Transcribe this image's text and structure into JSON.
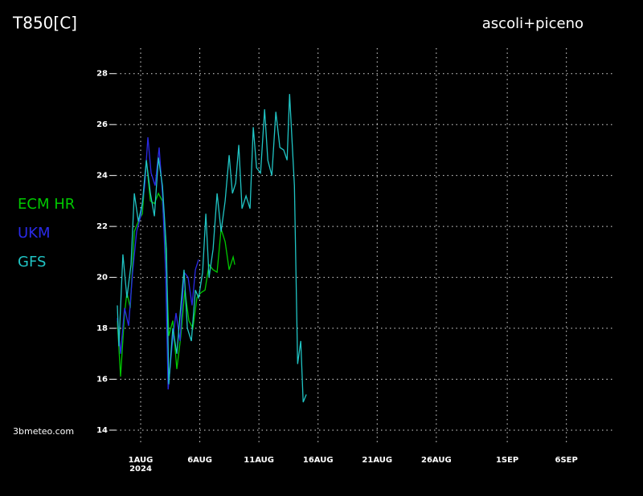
{
  "chart_data": {
    "type": "line",
    "title": "T850[C]",
    "subtitle": "ascoli+piceno",
    "credit": "3bmeteo.com",
    "year_label": "2024",
    "xlim": [
      -1.38,
      41.1
    ],
    "ylim": [
      13.4,
      29
    ],
    "xticks": [
      {
        "value": 1,
        "label": "1AUG"
      },
      {
        "value": 6,
        "label": "6AUG"
      },
      {
        "value": 11,
        "label": "11AUG"
      },
      {
        "value": 16,
        "label": "16AUG"
      },
      {
        "value": 21,
        "label": "21AUG"
      },
      {
        "value": 26,
        "label": "26AUG"
      },
      {
        "value": 32,
        "label": "1SEP"
      },
      {
        "value": 37,
        "label": "6SEP"
      }
    ],
    "yticks": [
      14,
      16,
      18,
      20,
      22,
      24,
      26,
      28
    ],
    "grid": true,
    "series": [
      {
        "name": "ECM HR",
        "color": "#00c800",
        "x": [
          -0.97,
          -0.7,
          -0.36,
          -0.16,
          0.12,
          0.46,
          0.8,
          1.14,
          1.48,
          1.82,
          2.16,
          2.5,
          2.84,
          3.18,
          3.38,
          3.72,
          4.06,
          4.4,
          4.74,
          5.08,
          5.42,
          5.76,
          6.1,
          6.44,
          6.78,
          7.12,
          7.46,
          7.8,
          8.14,
          8.48,
          8.82,
          8.96
        ],
        "values": [
          18.3,
          16.1,
          18.6,
          19.4,
          18.8,
          21.8,
          22.2,
          22.5,
          24.6,
          23.0,
          22.9,
          23.3,
          23.0,
          20.5,
          17.7,
          18.3,
          16.4,
          17.7,
          19.5,
          18.3,
          18.0,
          19.2,
          19.4,
          19.5,
          20.5,
          20.3,
          20.2,
          21.9,
          21.4,
          20.3,
          20.8,
          20.5
        ]
      },
      {
        "name": "UKM",
        "color": "#2a2ae8",
        "x": [
          -0.97,
          -0.7,
          -0.36,
          -0.02,
          0.32,
          0.66,
          1.0,
          1.34,
          1.61,
          1.88,
          2.22,
          2.56,
          2.84,
          3.11,
          3.32,
          3.65,
          3.99,
          4.33,
          4.67,
          5.01,
          5.35,
          5.63,
          5.9
        ],
        "values": [
          18.4,
          17.0,
          18.8,
          18.1,
          20.2,
          21.8,
          22.4,
          23.6,
          25.5,
          24.1,
          23.6,
          25.1,
          23.3,
          20.2,
          15.6,
          17.3,
          18.6,
          17.5,
          20.2,
          20.0,
          18.9,
          20.3,
          20.7
        ]
      },
      {
        "name": "GFS",
        "color": "#20c4c4",
        "x": [
          -0.97,
          -0.84,
          -0.5,
          -0.16,
          0.18,
          0.46,
          0.8,
          1.14,
          1.48,
          1.82,
          2.16,
          2.5,
          2.84,
          3.18,
          3.38,
          3.72,
          4.06,
          4.4,
          4.67,
          4.95,
          5.29,
          5.63,
          5.9,
          6.24,
          6.51,
          6.78,
          7.12,
          7.46,
          7.8,
          8.14,
          8.48,
          8.76,
          9.03,
          9.3,
          9.57,
          9.91,
          10.25,
          10.52,
          10.8,
          11.14,
          11.48,
          11.75,
          12.09,
          12.43,
          12.77,
          13.1,
          13.38,
          13.59,
          14.0,
          14.27,
          14.54,
          14.74,
          15.01
        ],
        "values": [
          18.9,
          17.3,
          20.9,
          19.2,
          20.5,
          23.3,
          22.2,
          22.9,
          24.6,
          23.3,
          22.4,
          24.7,
          23.6,
          21.1,
          15.8,
          18.0,
          17.0,
          18.9,
          20.3,
          18.0,
          17.5,
          19.5,
          19.2,
          20.2,
          22.5,
          20.0,
          21.1,
          23.3,
          21.8,
          23.0,
          24.8,
          23.3,
          23.7,
          25.2,
          22.7,
          23.2,
          22.7,
          25.9,
          24.3,
          24.1,
          26.6,
          24.6,
          24.0,
          26.5,
          25.1,
          25.0,
          24.6,
          27.2,
          23.6,
          16.6,
          17.5,
          15.1,
          15.4
        ]
      }
    ]
  }
}
